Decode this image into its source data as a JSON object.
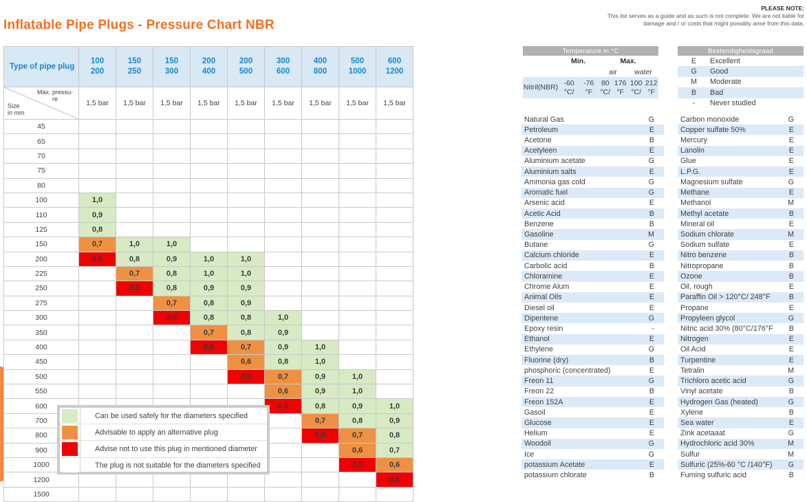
{
  "title": "Inflatable Pipe Plugs - Pressure Chart NBR",
  "note": {
    "heading": "PLEASE NOTE:",
    "line1": "This list serves as a guide and as such is not complete. We are not liable for",
    "line2": "damage and / or costs that might possibly arise from this data."
  },
  "colors": {
    "accent_orange": "#f4701f",
    "safe_green": "#d7eac3",
    "alternative_orange": "#ef9143",
    "not_advised_red": "#ee0202",
    "stripe_blue": "#dbeaf6",
    "header_blue_bg": "#d8e8f5",
    "header_blue_text": "#1a87c8",
    "bar_gray": "#b1b1b1"
  },
  "pressure_table": {
    "corner_header": "Type of pipe plug",
    "diag_top_lines": [
      "Max. pressu-",
      "re"
    ],
    "diag_bottom_lines": [
      "Size",
      "in mm"
    ],
    "col_headers": [
      [
        "100",
        "200"
      ],
      [
        "150",
        "250"
      ],
      [
        "150",
        "300"
      ],
      [
        "200",
        "400"
      ],
      [
        "200",
        "500"
      ],
      [
        "300",
        "600"
      ],
      [
        "400",
        "800"
      ],
      [
        "500",
        "1000"
      ],
      [
        "600",
        "1200"
      ]
    ],
    "max_pressure_label": "1,5 bar",
    "rows": [
      {
        "size": "45",
        "cells": [
          null,
          null,
          null,
          null,
          null,
          null,
          null,
          null,
          null
        ]
      },
      {
        "size": "65",
        "cells": [
          null,
          null,
          null,
          null,
          null,
          null,
          null,
          null,
          null
        ]
      },
      {
        "size": "70",
        "cells": [
          null,
          null,
          null,
          null,
          null,
          null,
          null,
          null,
          null
        ]
      },
      {
        "size": "75",
        "cells": [
          null,
          null,
          null,
          null,
          null,
          null,
          null,
          null,
          null
        ]
      },
      {
        "size": "80",
        "cells": [
          null,
          null,
          null,
          null,
          null,
          null,
          null,
          null,
          null
        ]
      },
      {
        "size": "100",
        "cells": [
          [
            "1,0",
            "s"
          ],
          null,
          null,
          null,
          null,
          null,
          null,
          null,
          null
        ]
      },
      {
        "size": "110",
        "cells": [
          [
            "0,9",
            "s"
          ],
          null,
          null,
          null,
          null,
          null,
          null,
          null,
          null
        ]
      },
      {
        "size": "125",
        "cells": [
          [
            "0,8",
            "s"
          ],
          null,
          null,
          null,
          null,
          null,
          null,
          null,
          null
        ]
      },
      {
        "size": "150",
        "cells": [
          [
            "0,7",
            "a"
          ],
          [
            "1,0",
            "s"
          ],
          [
            "1,0",
            "s"
          ],
          null,
          null,
          null,
          null,
          null,
          null
        ]
      },
      {
        "size": "200",
        "cells": [
          [
            "0,5",
            "n"
          ],
          [
            "0,8",
            "s"
          ],
          [
            "0,9",
            "s"
          ],
          [
            "1,0",
            "s"
          ],
          [
            "1,0",
            "s"
          ],
          null,
          null,
          null,
          null
        ]
      },
      {
        "size": "225",
        "cells": [
          null,
          [
            "0,7",
            "a"
          ],
          [
            "0,8",
            "s"
          ],
          [
            "1,0",
            "s"
          ],
          [
            "1,0",
            "s"
          ],
          null,
          null,
          null,
          null
        ]
      },
      {
        "size": "250",
        "cells": [
          null,
          [
            "0,5",
            "n"
          ],
          [
            "0,8",
            "s"
          ],
          [
            "0,9",
            "s"
          ],
          [
            "0,9",
            "s"
          ],
          null,
          null,
          null,
          null
        ]
      },
      {
        "size": "275",
        "cells": [
          null,
          null,
          [
            "0,7",
            "a"
          ],
          [
            "0,8",
            "s"
          ],
          [
            "0,9",
            "s"
          ],
          null,
          null,
          null,
          null
        ]
      },
      {
        "size": "300",
        "cells": [
          null,
          null,
          [
            "0,5",
            "n"
          ],
          [
            "0,8",
            "s"
          ],
          [
            "0,8",
            "s"
          ],
          [
            "1,0",
            "s"
          ],
          null,
          null,
          null
        ]
      },
      {
        "size": "350",
        "cells": [
          null,
          null,
          null,
          [
            "0,7",
            "a"
          ],
          [
            "0,8",
            "s"
          ],
          [
            "0,9",
            "s"
          ],
          null,
          null,
          null
        ]
      },
      {
        "size": "400",
        "cells": [
          null,
          null,
          null,
          [
            "0,5",
            "n"
          ],
          [
            "0,7",
            "a"
          ],
          [
            "0,9",
            "s"
          ],
          [
            "1,0",
            "s"
          ],
          null,
          null
        ]
      },
      {
        "size": "450",
        "cells": [
          null,
          null,
          null,
          null,
          [
            "0,6",
            "a"
          ],
          [
            "0,8",
            "s"
          ],
          [
            "1,0",
            "s"
          ],
          null,
          null
        ]
      },
      {
        "size": "500",
        "cells": [
          null,
          null,
          null,
          null,
          [
            "0,5",
            "n"
          ],
          [
            "0,7",
            "a"
          ],
          [
            "0,9",
            "s"
          ],
          [
            "1,0",
            "s"
          ],
          null
        ]
      },
      {
        "size": "550",
        "cells": [
          null,
          null,
          null,
          null,
          null,
          [
            "0,6",
            "a"
          ],
          [
            "0,9",
            "s"
          ],
          [
            "1,0",
            "s"
          ],
          null
        ]
      },
      {
        "size": "600",
        "cells": [
          null,
          null,
          null,
          null,
          null,
          [
            "0,5",
            "n"
          ],
          [
            "0,8",
            "s"
          ],
          [
            "0,9",
            "s"
          ],
          [
            "1,0",
            "s"
          ]
        ]
      },
      {
        "size": "700",
        "cells": [
          null,
          null,
          null,
          null,
          null,
          null,
          [
            "0,7",
            "a"
          ],
          [
            "0,8",
            "s"
          ],
          [
            "0,9",
            "s"
          ]
        ]
      },
      {
        "size": "800",
        "cells": [
          null,
          null,
          null,
          null,
          null,
          null,
          [
            "0,5",
            "n"
          ],
          [
            "0,7",
            "a"
          ],
          [
            "0,8",
            "s"
          ]
        ]
      },
      {
        "size": "900",
        "cells": [
          null,
          null,
          null,
          null,
          null,
          null,
          null,
          [
            "0,6",
            "a"
          ],
          [
            "0,7",
            "s"
          ]
        ]
      },
      {
        "size": "1000",
        "cells": [
          null,
          null,
          null,
          null,
          null,
          null,
          null,
          [
            "0,5",
            "n"
          ],
          [
            "0,6",
            "a"
          ]
        ]
      },
      {
        "size": "1200",
        "cells": [
          null,
          null,
          null,
          null,
          null,
          null,
          null,
          null,
          [
            "0,5",
            "n"
          ]
        ]
      },
      {
        "size": "1500",
        "cells": [
          null,
          null,
          null,
          null,
          null,
          null,
          null,
          null,
          null
        ]
      }
    ]
  },
  "legend": {
    "items": [
      {
        "key": "safe",
        "label": "Can be used safely for the diameters specified"
      },
      {
        "key": "alt",
        "label": "Advisable to apply an alternative plug"
      },
      {
        "key": "no",
        "label": "Advise not to use this plug in mentioned diameter"
      },
      {
        "key": "none",
        "label": "The plug is not suitable for the diameters specified"
      }
    ]
  },
  "temperature": {
    "title": "Temperature in °C",
    "min_label": "Min.",
    "max_label": "Max.",
    "air_label": "air",
    "water_label": "water",
    "material_lines": [
      "Nitril",
      "(NBR)"
    ],
    "min_lines": [
      "-60 °C/",
      "-76 °F"
    ],
    "max_air_lines": [
      "80 °C/",
      "176 °F"
    ],
    "max_water_lines": [
      "100 °C/",
      "212 °F"
    ]
  },
  "grades": {
    "title": "Bestendigheidsgraad",
    "items": [
      {
        "code": "E",
        "label": "Excellent"
      },
      {
        "code": "G",
        "label": "Good"
      },
      {
        "code": "M",
        "label": "Moderate"
      },
      {
        "code": "B",
        "label": "Bad"
      },
      {
        "code": "-",
        "label": "Never studied"
      }
    ]
  },
  "chemicals_left": [
    {
      "name": "Natural Gas",
      "grade": "G"
    },
    {
      "name": "Petroleum",
      "grade": "E"
    },
    {
      "name": "Acetone",
      "grade": "B"
    },
    {
      "name": "Acetyleen",
      "grade": "E"
    },
    {
      "name": "Aluminium acetate",
      "grade": "G"
    },
    {
      "name": "Aluminium salts",
      "grade": "E"
    },
    {
      "name": "Ammonia gas cold",
      "grade": "G"
    },
    {
      "name": "Aromatic fuel",
      "grade": "G"
    },
    {
      "name": "Arsenic acid",
      "grade": "E"
    },
    {
      "name": "Acetic Acid",
      "grade": "B"
    },
    {
      "name": "Benzene",
      "grade": "B"
    },
    {
      "name": "Gasoline",
      "grade": "M"
    },
    {
      "name": "Butane",
      "grade": "G"
    },
    {
      "name": "Calcium chloride",
      "grade": "E"
    },
    {
      "name": "Carbolic acid",
      "grade": "B"
    },
    {
      "name": "Chloramine",
      "grade": "E"
    },
    {
      "name": "Chrome Alum",
      "grade": "E"
    },
    {
      "name": "Animal Oils",
      "grade": "E"
    },
    {
      "name": "Diesel oil",
      "grade": "E"
    },
    {
      "name": "Dipentene",
      "grade": "G"
    },
    {
      "name": "Epoxy resin",
      "grade": "-"
    },
    {
      "name": "Ethanol",
      "grade": "E"
    },
    {
      "name": "Ethylene",
      "grade": "G"
    },
    {
      "name": "Fluorine (dry)",
      "grade": "B"
    },
    {
      "name": "phosphoric (concentrated)",
      "grade": "E"
    },
    {
      "name": "Freon 11",
      "grade": "G"
    },
    {
      "name": "Freon 22",
      "grade": "B"
    },
    {
      "name": "Freon 152A",
      "grade": "E"
    },
    {
      "name": "Gasoil",
      "grade": "E"
    },
    {
      "name": "Glucose",
      "grade": "E"
    },
    {
      "name": "Helium",
      "grade": "E"
    },
    {
      "name": "Woodoil",
      "grade": "G"
    },
    {
      "name": "Ice",
      "grade": "G"
    },
    {
      "name": "potassium Acetate",
      "grade": "E"
    },
    {
      "name": "potassium chlorate",
      "grade": "B"
    }
  ],
  "chemicals_right": [
    {
      "name": "Carbon monoxide",
      "grade": "G"
    },
    {
      "name": "Copper sulfate 50%",
      "grade": "E"
    },
    {
      "name": "Mercury",
      "grade": "E"
    },
    {
      "name": "Lanolin",
      "grade": "E"
    },
    {
      "name": "Glue",
      "grade": "E"
    },
    {
      "name": "L.P.G.",
      "grade": "E"
    },
    {
      "name": "Magnesium sulfate",
      "grade": "G"
    },
    {
      "name": "Methane",
      "grade": "E"
    },
    {
      "name": "Methanol",
      "grade": "M"
    },
    {
      "name": "Methyl acetate",
      "grade": "B"
    },
    {
      "name": "Mineral oil",
      "grade": "E"
    },
    {
      "name": "Sodium chlorate",
      "grade": "M"
    },
    {
      "name": "Sodium sulfate",
      "grade": "E"
    },
    {
      "name": "Nitro benzene",
      "grade": "B"
    },
    {
      "name": "Nitropropane",
      "grade": "B"
    },
    {
      "name": "Ozone",
      "grade": "B"
    },
    {
      "name": "Oil, rough",
      "grade": "E"
    },
    {
      "name": "Paraffin Oil > 120°C/ 248°F",
      "grade": "B"
    },
    {
      "name": "Propane",
      "grade": "E"
    },
    {
      "name": "Propyleen glycol",
      "grade": "G"
    },
    {
      "name": "Nitric acid  30% (80°C/176°F)",
      "grade": "B"
    },
    {
      "name": "Nitrogen",
      "grade": "E"
    },
    {
      "name": "Oil Acid",
      "grade": "E"
    },
    {
      "name": "Turpentine",
      "grade": "E"
    },
    {
      "name": "Tetralin",
      "grade": "M"
    },
    {
      "name": "Trichloro acetic acid",
      "grade": "G"
    },
    {
      "name": "Vinyl acetate",
      "grade": "B"
    },
    {
      "name": "Hydrogen Gas (heated)",
      "grade": "G"
    },
    {
      "name": "Xylene",
      "grade": "B"
    },
    {
      "name": "Sea water",
      "grade": "E"
    },
    {
      "name": "Zink acetaaat",
      "grade": "G"
    },
    {
      "name": "Hydrochloric acid 30%",
      "grade": "M"
    },
    {
      "name": "Sulfur",
      "grade": "M"
    },
    {
      "name": "Sulfuric (25%-60 °C /140°F)",
      "grade": "G"
    },
    {
      "name": "Fuming sulfuric acid",
      "grade": "B"
    }
  ]
}
